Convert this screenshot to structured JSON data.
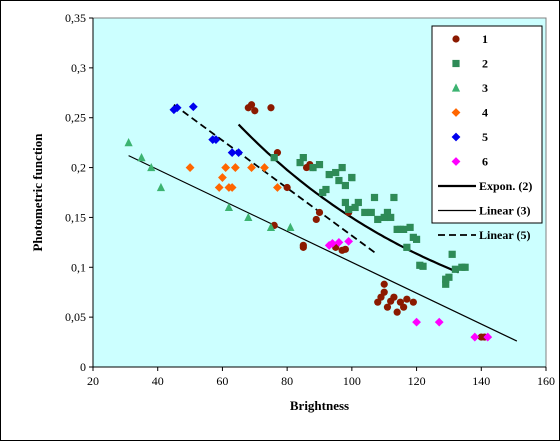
{
  "chart_data": {
    "type": "scatter",
    "xlabel": "Brightness",
    "ylabel": "Photometric function",
    "xlim": [
      20,
      160
    ],
    "ylim": [
      0,
      0.35
    ],
    "x_ticks": [
      20,
      40,
      60,
      80,
      100,
      120,
      140,
      160
    ],
    "x_tick_labels": [
      "20",
      "40",
      "60",
      "80",
      "100",
      "120",
      "140",
      "160"
    ],
    "y_ticks": [
      0,
      0.05,
      0.1,
      0.15,
      0.2,
      0.25,
      0.3,
      0.35
    ],
    "y_tick_labels": [
      "0",
      "0,05",
      "0,1",
      "0,15",
      "0,2",
      "0,25",
      "0,3",
      "0,35"
    ],
    "plot_background": "#ccffff",
    "grid": false,
    "legend_position": "top-right",
    "series": [
      {
        "name": "1",
        "marker": "circle",
        "color": "#8b1a00",
        "points": [
          [
            68,
            0.26
          ],
          [
            69,
            0.263
          ],
          [
            70,
            0.257
          ],
          [
            75,
            0.26
          ],
          [
            76,
            0.142
          ],
          [
            77,
            0.215
          ],
          [
            80,
            0.18
          ],
          [
            85,
            0.12
          ],
          [
            85,
            0.122
          ],
          [
            86,
            0.2
          ],
          [
            87,
            0.203
          ],
          [
            88,
            0.2
          ],
          [
            89,
            0.148
          ],
          [
            90,
            0.155
          ],
          [
            95,
            0.12
          ],
          [
            97,
            0.117
          ],
          [
            98,
            0.118
          ],
          [
            99,
            0.155
          ],
          [
            108,
            0.065
          ],
          [
            109,
            0.07
          ],
          [
            110,
            0.083
          ],
          [
            110,
            0.075
          ],
          [
            111,
            0.06
          ],
          [
            112,
            0.066
          ],
          [
            113,
            0.07
          ],
          [
            114,
            0.055
          ],
          [
            115,
            0.065
          ],
          [
            116,
            0.06
          ],
          [
            117,
            0.068
          ],
          [
            119,
            0.065
          ],
          [
            140,
            0.03
          ],
          [
            141,
            0.03
          ]
        ]
      },
      {
        "name": "2",
        "marker": "square",
        "color": "#2e8b57",
        "points": [
          [
            76,
            0.21
          ],
          [
            84,
            0.205
          ],
          [
            85,
            0.21
          ],
          [
            88,
            0.2
          ],
          [
            90,
            0.203
          ],
          [
            91,
            0.175
          ],
          [
            92,
            0.178
          ],
          [
            93,
            0.193
          ],
          [
            95,
            0.195
          ],
          [
            96,
            0.187
          ],
          [
            97,
            0.2
          ],
          [
            98,
            0.182
          ],
          [
            98,
            0.165
          ],
          [
            99,
            0.158
          ],
          [
            100,
            0.19
          ],
          [
            100,
            0.19
          ],
          [
            101,
            0.16
          ],
          [
            102,
            0.165
          ],
          [
            104,
            0.155
          ],
          [
            106,
            0.155
          ],
          [
            107,
            0.17
          ],
          [
            108,
            0.148
          ],
          [
            110,
            0.15
          ],
          [
            111,
            0.155
          ],
          [
            112,
            0.15
          ],
          [
            113,
            0.17
          ],
          [
            114,
            0.138
          ],
          [
            115,
            0.138
          ],
          [
            116,
            0.138
          ],
          [
            117,
            0.12
          ],
          [
            118,
            0.14
          ],
          [
            119,
            0.13
          ],
          [
            120,
            0.128
          ],
          [
            121,
            0.102
          ],
          [
            122,
            0.101
          ],
          [
            130,
            0.09
          ],
          [
            131,
            0.113
          ],
          [
            132,
            0.098
          ],
          [
            134,
            0.1
          ],
          [
            135,
            0.1
          ],
          [
            129,
            0.083
          ],
          [
            129,
            0.088
          ]
        ]
      },
      {
        "name": "3",
        "marker": "triangle",
        "color": "#3cb371",
        "points": [
          [
            31,
            0.225
          ],
          [
            35,
            0.21
          ],
          [
            38,
            0.2
          ],
          [
            41,
            0.18
          ],
          [
            62,
            0.16
          ],
          [
            68,
            0.15
          ],
          [
            75,
            0.14
          ],
          [
            81,
            0.14
          ]
        ]
      },
      {
        "name": "4",
        "marker": "diamond",
        "color": "#ff6600",
        "points": [
          [
            50,
            0.2
          ],
          [
            59,
            0.18
          ],
          [
            60,
            0.19
          ],
          [
            61,
            0.2
          ],
          [
            62,
            0.18
          ],
          [
            63,
            0.18
          ],
          [
            64,
            0.2
          ],
          [
            69,
            0.2
          ],
          [
            73,
            0.2
          ],
          [
            77,
            0.18
          ]
        ]
      },
      {
        "name": "5",
        "marker": "diamond",
        "color": "#0000ee",
        "points": [
          [
            45,
            0.258
          ],
          [
            46,
            0.26
          ],
          [
            51,
            0.261
          ],
          [
            57,
            0.228
          ],
          [
            58,
            0.228
          ],
          [
            63,
            0.215
          ],
          [
            65,
            0.215
          ]
        ]
      },
      {
        "name": "6",
        "marker": "diamond",
        "color": "#ff00ff",
        "points": [
          [
            93,
            0.122
          ],
          [
            94,
            0.124
          ],
          [
            96,
            0.125
          ],
          [
            99,
            0.126
          ],
          [
            120,
            0.045
          ],
          [
            127,
            0.045
          ],
          [
            138,
            0.03
          ],
          [
            142,
            0.03
          ]
        ]
      }
    ],
    "fits": [
      {
        "name": "Expon. (2)",
        "style": "solid",
        "width": 2.2,
        "kind": "exp",
        "a": 0.5984,
        "b": -0.01385,
        "x_range": [
          65,
          133
        ]
      },
      {
        "name": "Linear (3)",
        "style": "solid",
        "width": 1.2,
        "kind": "linear",
        "x_from": 31,
        "y_from": 0.212,
        "x_to": 151,
        "y_to": 0.026
      },
      {
        "name": "Linear (5)",
        "style": "dashed",
        "width": 1.8,
        "kind": "linear",
        "x_from": 45,
        "y_from": 0.263,
        "x_to": 107,
        "y_to": 0.115
      }
    ]
  }
}
